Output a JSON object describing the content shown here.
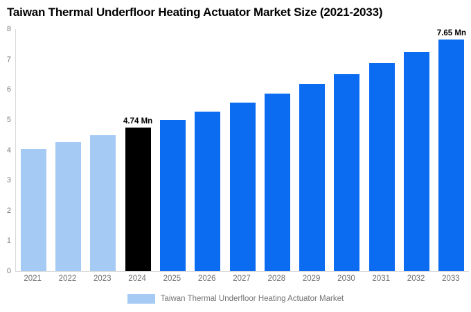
{
  "chart_data": {
    "type": "bar",
    "title": "Taiwan Thermal Underfloor Heating Actuator Market Size (2021-2033)",
    "xlabel": "",
    "ylabel": "",
    "ylim": [
      0,
      8
    ],
    "yticks": [
      0,
      1,
      2,
      3,
      4,
      5,
      6,
      7,
      8
    ],
    "grid": false,
    "categories": [
      "2021",
      "2022",
      "2023",
      "2024",
      "2025",
      "2026",
      "2027",
      "2028",
      "2029",
      "2030",
      "2031",
      "2032",
      "2033"
    ],
    "series": [
      {
        "name": "Taiwan Thermal Underfloor Heating Actuator Market",
        "values": [
          4.04,
          4.26,
          4.49,
          4.74,
          5.0,
          5.27,
          5.56,
          5.86,
          6.18,
          6.52,
          6.88,
          7.25,
          7.65
        ]
      }
    ],
    "bar_colors": [
      "#a5cbf5",
      "#a5cbf5",
      "#a5cbf5",
      "#000000",
      "#0b6cf2",
      "#0b6cf2",
      "#0b6cf2",
      "#0b6cf2",
      "#0b6cf2",
      "#0b6cf2",
      "#0b6cf2",
      "#0b6cf2",
      "#0b6cf2"
    ],
    "data_labels": {
      "2024": "4.74 Mn",
      "2033": "7.65 Mn"
    },
    "legend": {
      "position": "bottom",
      "items": [
        {
          "label": "Taiwan Thermal Underfloor Heating Actuator Market",
          "color": "#a5cbf5"
        }
      ]
    },
    "colors": {
      "historical": "#a5cbf5",
      "base_year": "#000000",
      "forecast": "#0b6cf2",
      "axis_line": "#d9d9d9",
      "tick_text": "#7a7a7a",
      "legend_text": "#757575",
      "title_text": "#000000"
    }
  }
}
